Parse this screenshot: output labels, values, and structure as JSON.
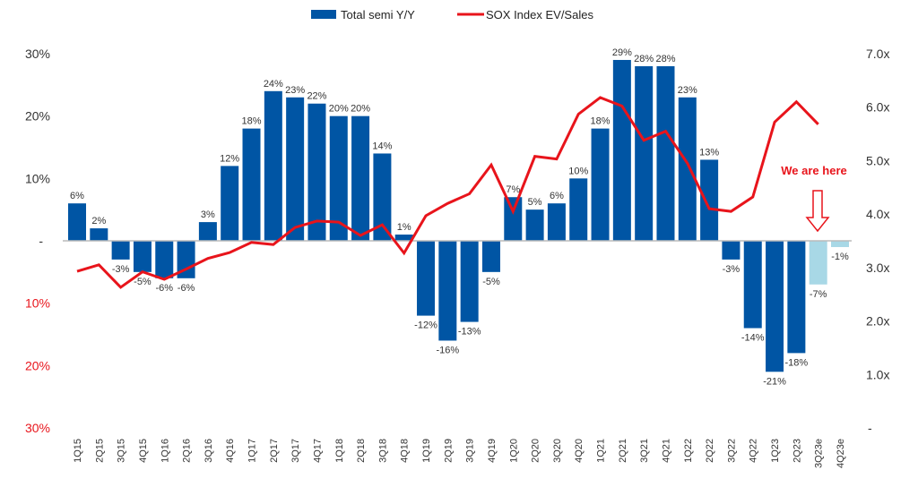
{
  "chart_data": {
    "type": "bar+line",
    "categories": [
      "1Q15",
      "2Q15",
      "3Q15",
      "4Q15",
      "1Q16",
      "2Q16",
      "3Q16",
      "4Q16",
      "1Q17",
      "2Q17",
      "3Q17",
      "4Q17",
      "1Q18",
      "2Q18",
      "3Q18",
      "4Q18",
      "1Q19",
      "2Q19",
      "3Q19",
      "4Q19",
      "1Q20",
      "2Q20",
      "3Q20",
      "4Q20",
      "1Q21",
      "2Q21",
      "3Q21",
      "4Q21",
      "1Q22",
      "2Q22",
      "3Q22",
      "4Q22",
      "1Q23",
      "2Q23",
      "3Q23e",
      "4Q23e"
    ],
    "series": [
      {
        "name": "Total semi Y/Y",
        "type": "bar",
        "axis": "left",
        "color": "#0055a4",
        "estimate_color": "#a8d8e6",
        "values": [
          6,
          2,
          -3,
          -5,
          -6,
          -6,
          3,
          12,
          18,
          24,
          23,
          22,
          20,
          20,
          14,
          1,
          -12,
          -16,
          -13,
          -5,
          7,
          5,
          6,
          10,
          18,
          29,
          28,
          28,
          23,
          13,
          -3,
          -14,
          -21,
          -18,
          -7,
          -1
        ],
        "labels": [
          "6%",
          "2%",
          "-3%",
          "-5%",
          "-6%",
          "-6%",
          "3%",
          "12%",
          "18%",
          "24%",
          "23%",
          "22%",
          "20%",
          "20%",
          "14%",
          "1%",
          "-12%",
          "-16%",
          "-13%",
          "-5%",
          "7%",
          "5%",
          "6%",
          "10%",
          "18%",
          "29%",
          "28%",
          "28%",
          "23%",
          "13%",
          "-3%",
          "-14%",
          "-21%",
          "-18%",
          "-7%",
          "-1%"
        ],
        "estimated": [
          "3Q23e",
          "4Q23e"
        ]
      },
      {
        "name": "SOX Index EV/Sales",
        "type": "line",
        "axis": "right",
        "color": "#e8141b",
        "values": [
          2.93,
          3.05,
          2.63,
          2.92,
          2.78,
          2.97,
          3.17,
          3.28,
          3.47,
          3.43,
          3.75,
          3.87,
          3.85,
          3.6,
          3.8,
          3.27,
          3.97,
          4.2,
          4.38,
          4.92,
          4.05,
          5.08,
          5.03,
          5.87,
          6.18,
          6.02,
          5.38,
          5.55,
          4.95,
          4.1,
          4.05,
          4.32,
          5.72,
          6.1,
          5.68,
          null
        ]
      }
    ],
    "left_axis": {
      "ylim": [
        -30,
        30
      ],
      "ticks": [
        30,
        20,
        10,
        0,
        -10,
        -20,
        -30
      ],
      "tick_labels": [
        "30%",
        "20%",
        "10%",
        "-",
        "10%",
        "20%",
        "30%"
      ],
      "negative_label_color": "#e8141b"
    },
    "right_axis": {
      "ylim": [
        0,
        7
      ],
      "ticks": [
        7,
        6,
        5,
        4,
        3,
        2,
        1,
        0
      ],
      "tick_labels": [
        "7.0x",
        "6.0x",
        "5.0x",
        "4.0x",
        "3.0x",
        "2.0x",
        "1.0x",
        "-"
      ]
    },
    "legend": {
      "placement": "top-center",
      "entries": [
        "Total semi Y/Y",
        "SOX Index EV/Sales"
      ]
    },
    "annotation": {
      "text": "We are here",
      "target": "3Q23e",
      "color": "#e8141b",
      "icon": "hollow-down-arrow"
    },
    "grid": false
  }
}
